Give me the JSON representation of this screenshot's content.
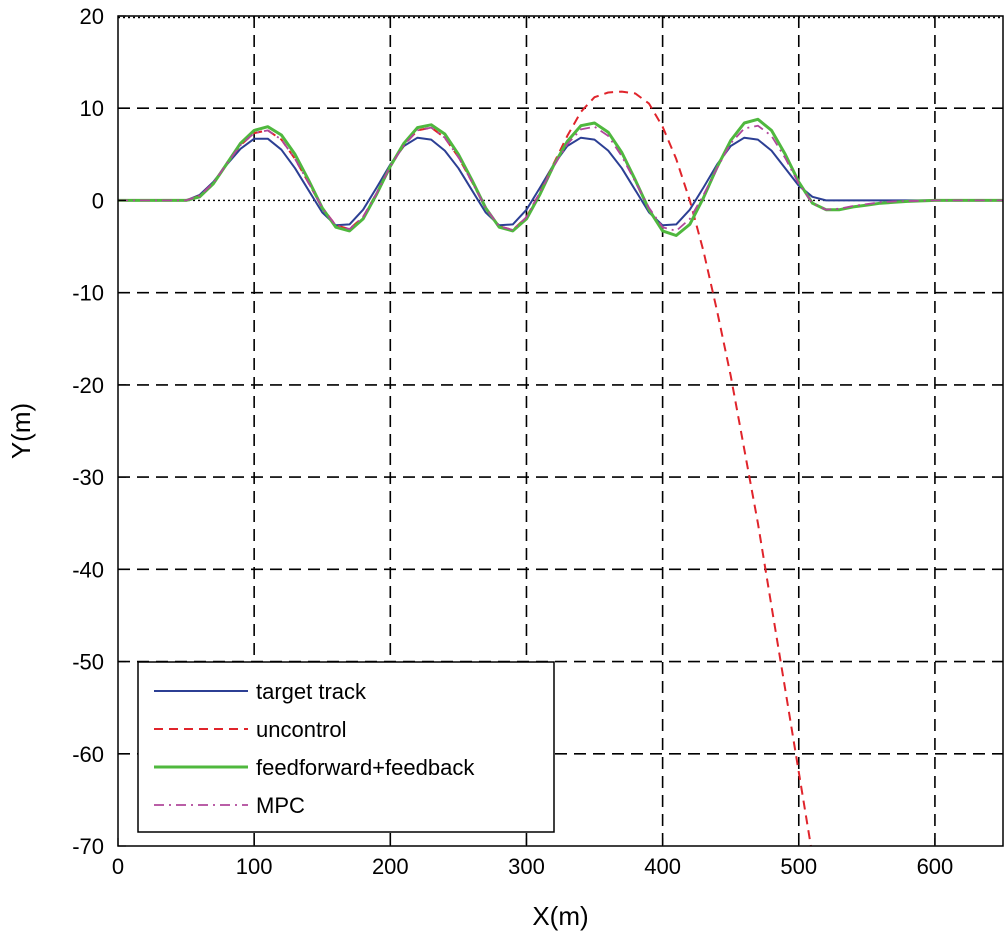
{
  "chart_data": {
    "type": "line",
    "title": "",
    "xlabel": "X(m)",
    "ylabel": "Y(m)",
    "xlim": [
      0,
      650
    ],
    "ylim": [
      -70,
      20
    ],
    "xticks": [
      0,
      100,
      200,
      300,
      400,
      500,
      600
    ],
    "yticks": [
      -70,
      -60,
      -50,
      -40,
      -30,
      -20,
      -10,
      0,
      10,
      20
    ],
    "x_tick_labels": [
      "0",
      "100",
      "200",
      "300",
      "400",
      "500",
      "600"
    ],
    "y_tick_labels": [
      "-70",
      "-60",
      "-50",
      "-40",
      "-30",
      "-20",
      "-10",
      "0",
      "10",
      "20"
    ],
    "grid": true,
    "legend_position": "bottom-left",
    "series": [
      {
        "name": "target track",
        "color": "#2c3f94",
        "style": "solid",
        "x": [
          0,
          50,
          60,
          70,
          80,
          90,
          100,
          110,
          120,
          130,
          140,
          150,
          160,
          170,
          180,
          190,
          200,
          210,
          220,
          230,
          240,
          250,
          260,
          270,
          280,
          290,
          300,
          310,
          320,
          330,
          340,
          350,
          360,
          370,
          380,
          390,
          400,
          410,
          420,
          430,
          440,
          450,
          460,
          470,
          480,
          490,
          500,
          510,
          520,
          530,
          540,
          550,
          600,
          650
        ],
        "y": [
          0,
          0,
          0.6,
          2.0,
          3.9,
          5.6,
          6.7,
          6.7,
          5.5,
          3.5,
          1.1,
          -1.3,
          -2.7,
          -2.6,
          -1.0,
          1.4,
          3.9,
          5.9,
          6.8,
          6.6,
          5.4,
          3.5,
          1.1,
          -1.3,
          -2.7,
          -2.6,
          -1.0,
          1.4,
          3.9,
          5.9,
          6.8,
          6.6,
          5.4,
          3.5,
          1.1,
          -1.3,
          -2.7,
          -2.6,
          -1.0,
          1.4,
          3.9,
          5.9,
          6.8,
          6.6,
          5.4,
          3.5,
          1.6,
          0.4,
          0,
          0,
          0,
          0,
          0,
          0
        ]
      },
      {
        "name": "uncontrol",
        "color": "#e0242b",
        "style": "dashed",
        "x": [
          0,
          50,
          60,
          70,
          80,
          90,
          100,
          110,
          120,
          130,
          140,
          150,
          160,
          170,
          180,
          190,
          200,
          210,
          220,
          230,
          240,
          250,
          260,
          270,
          280,
          290,
          300,
          310,
          320,
          330,
          340,
          350,
          360,
          370,
          380,
          390,
          400,
          410,
          420,
          430,
          440,
          450,
          460,
          470,
          480,
          490,
          500,
          505,
          510
        ],
        "y": [
          0,
          0,
          0.5,
          1.9,
          4.0,
          6.0,
          7.3,
          7.6,
          6.6,
          4.5,
          1.9,
          -0.8,
          -2.7,
          -3.1,
          -1.8,
          0.8,
          3.7,
          6.0,
          7.6,
          7.9,
          6.8,
          4.7,
          2.0,
          -0.8,
          -2.8,
          -3.2,
          -1.8,
          0.9,
          4.0,
          7.0,
          9.6,
          11.2,
          11.7,
          11.8,
          11.6,
          10.5,
          8.0,
          4.5,
          0,
          -5.5,
          -12.0,
          -19.0,
          -27.0,
          -35.0,
          -44.0,
          -53.0,
          -62.0,
          -66.5,
          -71.0
        ]
      },
      {
        "name": "feedforward+feedback",
        "color": "#4fb83e",
        "style": "solid",
        "x": [
          0,
          50,
          60,
          70,
          80,
          90,
          100,
          110,
          120,
          130,
          140,
          150,
          160,
          170,
          180,
          190,
          200,
          210,
          220,
          230,
          240,
          250,
          260,
          270,
          280,
          290,
          300,
          310,
          320,
          330,
          340,
          350,
          360,
          370,
          380,
          390,
          400,
          410,
          420,
          430,
          440,
          450,
          460,
          470,
          480,
          490,
          500,
          510,
          520,
          530,
          540,
          550,
          560,
          570,
          580,
          600,
          650
        ],
        "y": [
          0,
          0,
          0.4,
          1.8,
          4.0,
          6.2,
          7.6,
          8.0,
          7.1,
          5.0,
          2.2,
          -0.8,
          -2.9,
          -3.3,
          -2.0,
          0.7,
          3.7,
          6.2,
          7.9,
          8.2,
          7.2,
          5.0,
          2.2,
          -0.8,
          -2.9,
          -3.3,
          -2.0,
          0.7,
          3.8,
          6.4,
          8.1,
          8.4,
          7.4,
          5.2,
          2.2,
          -1.0,
          -3.3,
          -3.8,
          -2.6,
          0.3,
          3.6,
          6.5,
          8.4,
          8.8,
          7.6,
          5.0,
          2.0,
          -0.3,
          -1.0,
          -1.0,
          -0.7,
          -0.5,
          -0.3,
          -0.2,
          -0.1,
          0,
          0
        ]
      },
      {
        "name": "MPC",
        "color": "#b0479b",
        "style": "dashdot",
        "x": [
          0,
          50,
          60,
          70,
          80,
          90,
          100,
          110,
          120,
          130,
          140,
          150,
          160,
          170,
          180,
          190,
          200,
          210,
          220,
          230,
          240,
          250,
          260,
          270,
          280,
          290,
          300,
          310,
          320,
          330,
          340,
          350,
          360,
          370,
          380,
          390,
          400,
          410,
          420,
          430,
          440,
          450,
          460,
          470,
          480,
          490,
          500,
          510,
          520,
          530,
          540,
          550,
          560,
          570,
          600,
          650
        ],
        "y": [
          0,
          0,
          0.5,
          1.9,
          4.0,
          6.0,
          7.3,
          7.6,
          6.6,
          4.5,
          1.9,
          -0.8,
          -2.7,
          -3.1,
          -1.8,
          0.8,
          3.7,
          6.0,
          7.6,
          7.9,
          6.8,
          4.7,
          2.0,
          -0.8,
          -2.8,
          -3.2,
          -1.8,
          0.9,
          3.7,
          6.1,
          7.7,
          8.0,
          7.0,
          4.8,
          2.0,
          -0.8,
          -2.9,
          -3.3,
          -2.0,
          0.6,
          3.5,
          6.2,
          7.8,
          8.1,
          7.0,
          4.6,
          1.8,
          -0.3,
          -1.0,
          -0.9,
          -0.6,
          -0.4,
          -0.2,
          -0.1,
          0,
          0
        ]
      }
    ]
  }
}
